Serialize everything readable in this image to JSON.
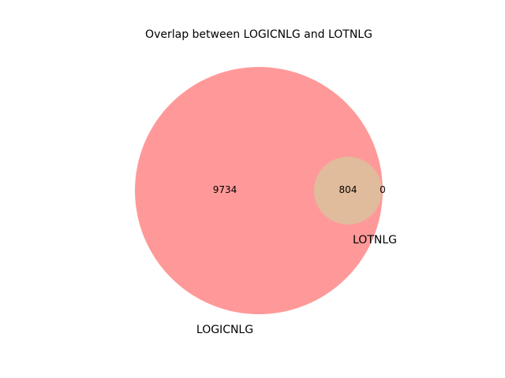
{
  "title": "Overlap between LOGICNLG and LOTNLG",
  "chart_data": {
    "type": "venn2",
    "title": "Overlap between LOGICNLG and LOTNLG",
    "sets": [
      {
        "name": "LOGICNLG",
        "color": "#ff9999"
      },
      {
        "name": "LOTNLG",
        "color": "#e0bc9c"
      }
    ],
    "regions": {
      "only_logicnlg": "9734",
      "intersection": "804",
      "only_lotnlg": "0"
    }
  },
  "colors": {
    "set_a": "#ff9999",
    "intersection": "#e0bc9c",
    "background": "#ffffff"
  }
}
